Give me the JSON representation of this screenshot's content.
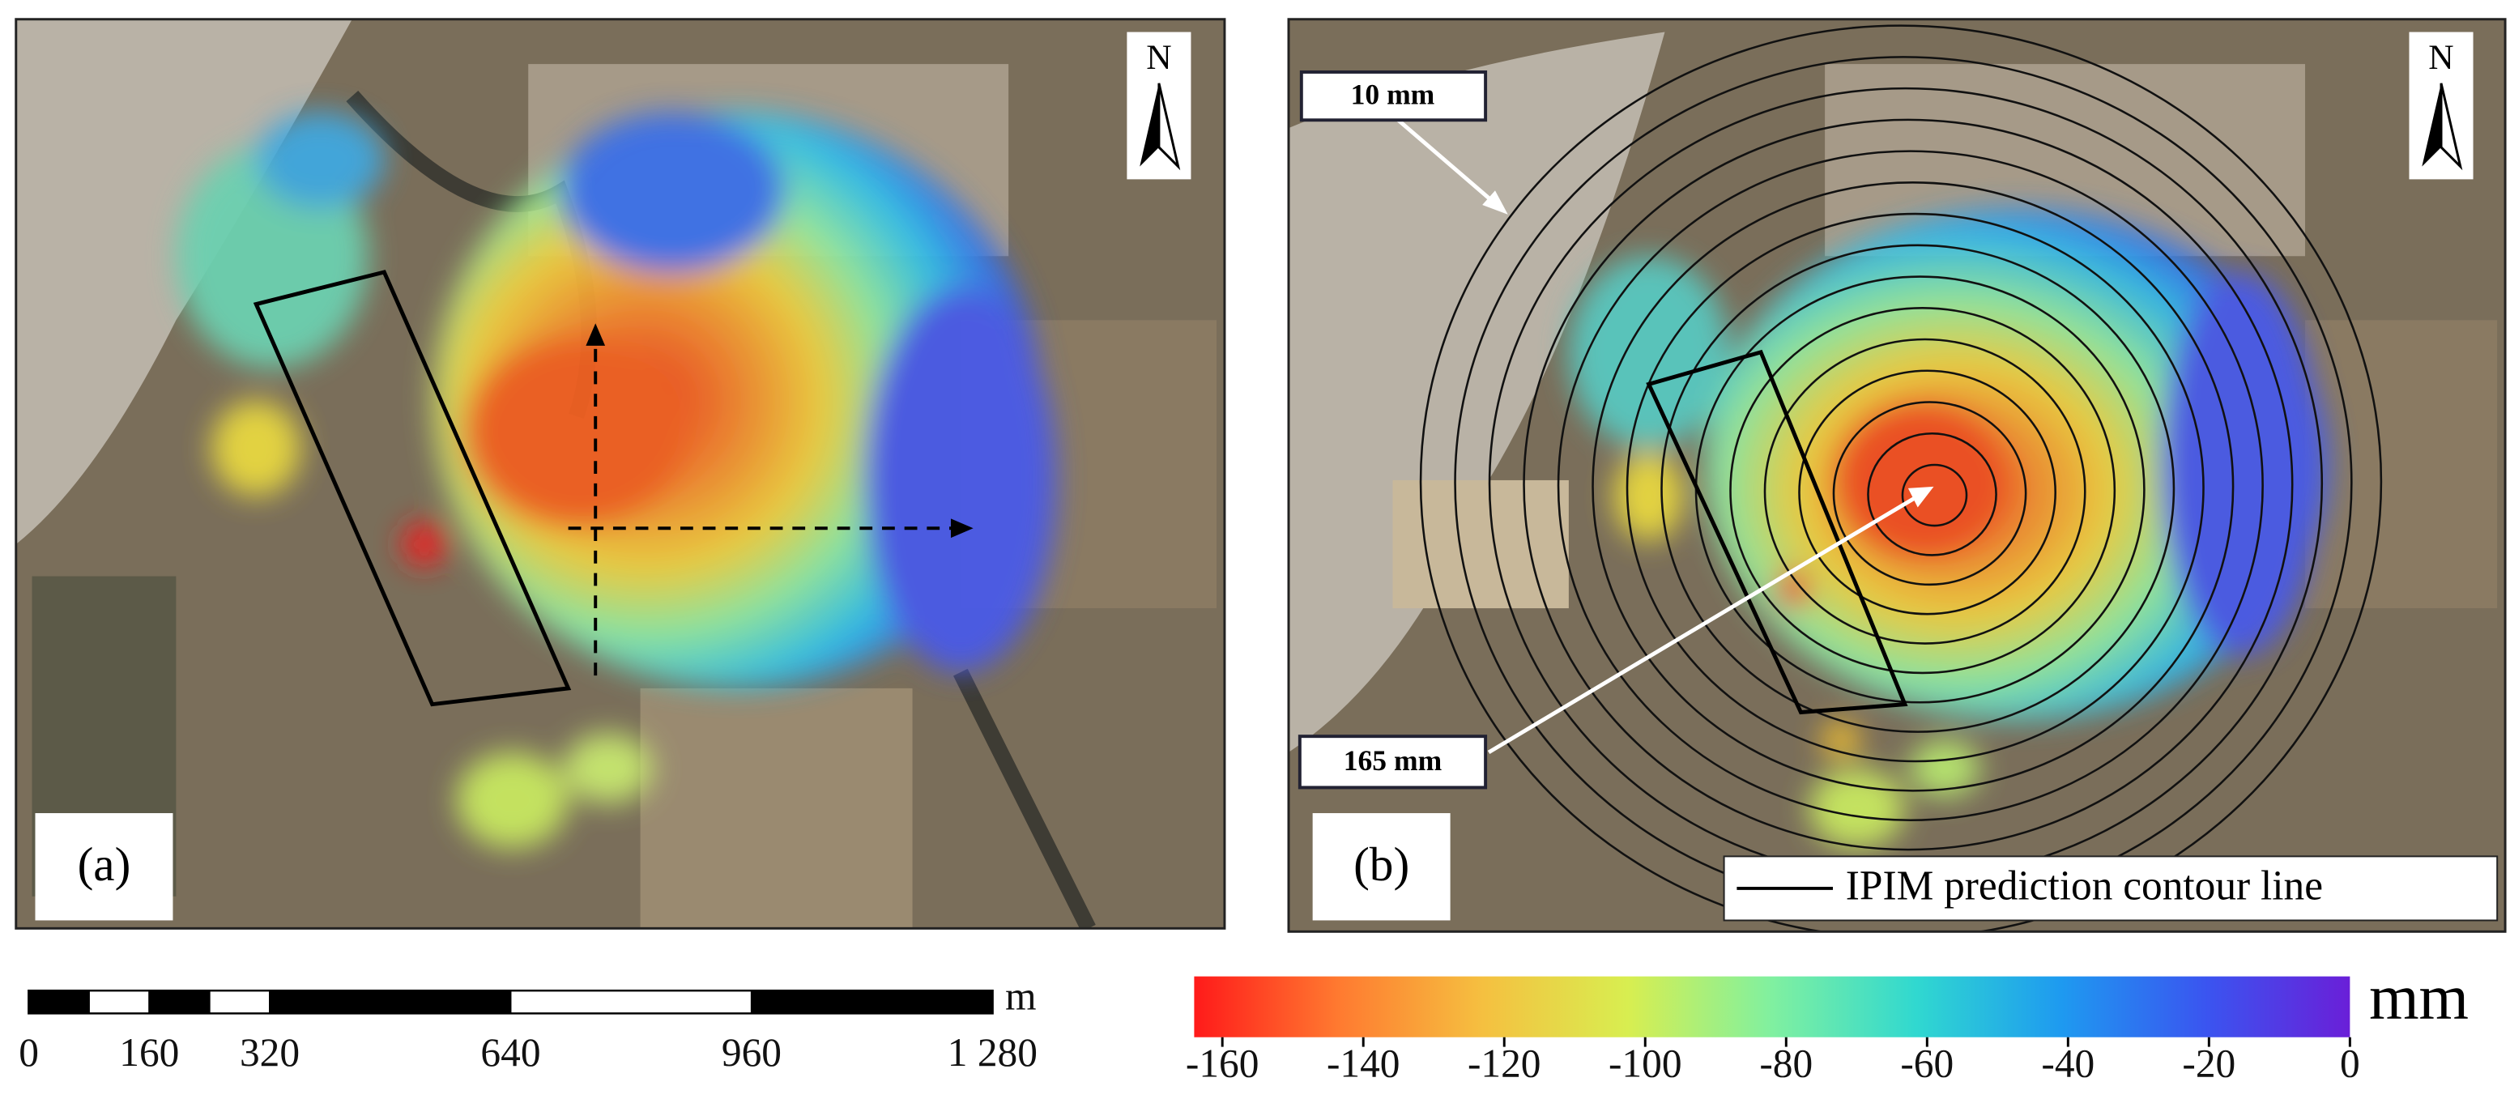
{
  "panels": [
    {
      "label": "(a)",
      "north": "N"
    },
    {
      "label": "(b)",
      "north": "N",
      "annotations": [
        "10 mm",
        "165 mm"
      ],
      "legend": "IPIM prediction contour line"
    }
  ],
  "scale_bar": {
    "unit": "m",
    "xlim": [
      0,
      1280
    ],
    "divisions": [
      0,
      80,
      160,
      240,
      320,
      640,
      960,
      1280
    ],
    "xticks": [
      0,
      160,
      320,
      640,
      960,
      {
        "value": 1280,
        "label": "1 280"
      }
    ]
  },
  "colorbar": {
    "label": "mm",
    "xlim": [
      -164,
      0
    ],
    "xticks": [
      -160,
      -140,
      -120,
      -100,
      -80,
      -60,
      -40,
      -20,
      0
    ],
    "colors": [
      "#ff1a1a",
      "#ff7a30",
      "#f5c040",
      "#d8ee50",
      "#80f0a0",
      "#30d8d0",
      "#1e9af0",
      "#3a55f0",
      "#6a1fd8"
    ]
  }
}
